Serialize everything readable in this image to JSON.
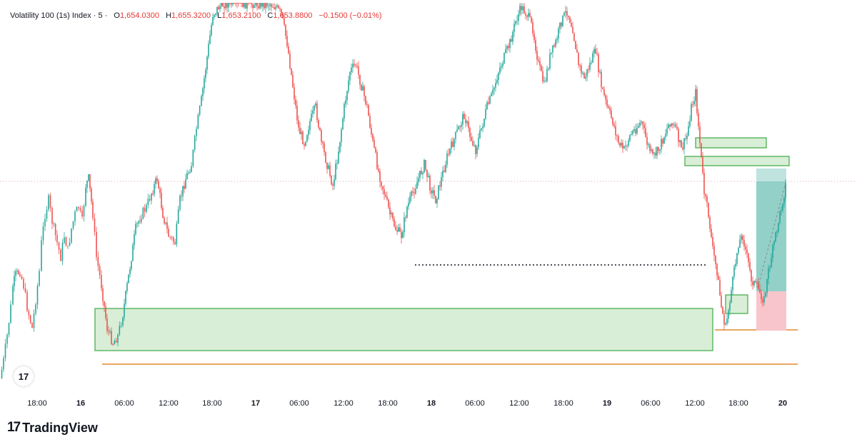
{
  "legend": {
    "symbol": "Volatility 100 (1s) Index · 5 ·",
    "open_key": "O",
    "open": "1,654.0300",
    "high_key": "H",
    "high": "1,655.3200",
    "low_key": "L",
    "low": "1,653.2100",
    "close_key": "C",
    "close": "1,653.8800",
    "change": "−0.1500 (−0.01%)"
  },
  "badge": {
    "label": "17",
    "icon": "tradingview-logo-icon"
  },
  "footer": {
    "logo_mark": "17",
    "brand": "TradingView"
  },
  "colors": {
    "up": "#26a69a",
    "down": "#ef5350",
    "zone_fill": "#d8eed6",
    "zone_stroke": "#4caf50",
    "level": "#e08a2e",
    "target": "#26a69a",
    "stop": "#f7c5cb"
  },
  "chart_data": {
    "type": "line",
    "note_type": "candlestick",
    "x_ticks": [
      {
        "label": "18:00",
        "bold": false
      },
      {
        "label": "16",
        "bold": true
      },
      {
        "label": "06:00",
        "bold": false
      },
      {
        "label": "12:00",
        "bold": false
      },
      {
        "label": "18:00",
        "bold": false
      },
      {
        "label": "17",
        "bold": true
      },
      {
        "label": "06:00",
        "bold": false
      },
      {
        "label": "12:00",
        "bold": false
      },
      {
        "label": "18:00",
        "bold": false
      },
      {
        "label": "18",
        "bold": true
      },
      {
        "label": "06:00",
        "bold": false
      },
      {
        "label": "12:00",
        "bold": false
      },
      {
        "label": "18:00",
        "bold": false
      },
      {
        "label": "19",
        "bold": true
      },
      {
        "label": "06:00",
        "bold": false
      },
      {
        "label": "12:00",
        "bold": false
      },
      {
        "label": "18:00",
        "bold": false
      },
      {
        "label": "20",
        "bold": true
      }
    ],
    "x": [
      0,
      5,
      10,
      15,
      18,
      22,
      28,
      33,
      38,
      45,
      50,
      55,
      58,
      63,
      68,
      73,
      80,
      85,
      90,
      95,
      100,
      105,
      110,
      115,
      120,
      124,
      130,
      135,
      142,
      150,
      158,
      165,
      172,
      178,
      184,
      190,
      198,
      205,
      212,
      220,
      228,
      236,
      245,
      252,
      260,
      268,
      275,
      282,
      290,
      298,
      306,
      314,
      322,
      330,
      338,
      346,
      354,
      362,
      370,
      378,
      386,
      394,
      402,
      410,
      418,
      426,
      434,
      442,
      450,
      458,
      466,
      474,
      482,
      490,
      498,
      506,
      514,
      522,
      530,
      538,
      546,
      554,
      562,
      570,
      578,
      586,
      594,
      602,
      610,
      618,
      626,
      634,
      642,
      650,
      658,
      666,
      674,
      682,
      690,
      698,
      706,
      714,
      722,
      730,
      738,
      746,
      754,
      762,
      770,
      778,
      786,
      794,
      802,
      810,
      818,
      826,
      834,
      842,
      850,
      858,
      866,
      874,
      882,
      890,
      898,
      906,
      914,
      922,
      930,
      938,
      946,
      954,
      962,
      968,
      974,
      980,
      986,
      992,
      998,
      1004,
      1010,
      1016,
      1022,
      1028,
      1034,
      1040,
      1046,
      1052,
      1058,
      1064,
      1070,
      1076,
      1082,
      1088,
      1094,
      1100
    ],
    "y": [
      530,
      505,
      470,
      430,
      400,
      385,
      380,
      400,
      430,
      460,
      420,
      380,
      340,
      300,
      280,
      310,
      340,
      360,
      330,
      350,
      320,
      300,
      290,
      310,
      260,
      250,
      300,
      360,
      400,
      460,
      480,
      470,
      440,
      400,
      360,
      320,
      300,
      290,
      270,
      250,
      300,
      330,
      340,
      280,
      250,
      230,
      180,
      140,
      80,
      20,
      10,
      5,
      5,
      5,
      5,
      5,
      5,
      5,
      5,
      5,
      10,
      20,
      60,
      120,
      180,
      200,
      170,
      150,
      200,
      230,
      260,
      210,
      150,
      100,
      90,
      120,
      150,
      200,
      240,
      270,
      300,
      320,
      330,
      290,
      270,
      250,
      230,
      260,
      280,
      250,
      220,
      200,
      180,
      160,
      190,
      210,
      180,
      150,
      130,
      100,
      80,
      60,
      30,
      10,
      20,
      40,
      90,
      120,
      80,
      60,
      30,
      15,
      40,
      90,
      110,
      90,
      70,
      120,
      150,
      170,
      200,
      210,
      190,
      180,
      170,
      200,
      220,
      210,
      190,
      170,
      180,
      210,
      190,
      150,
      130,
      200,
      270,
      300,
      350,
      380,
      430,
      460,
      420,
      380,
      340,
      330,
      360,
      390,
      400,
      410,
      420,
      380,
      350,
      320,
      290,
      260
    ],
    "price_line_y": 254,
    "zones": [
      {
        "name": "demand-zone-large",
        "x1": 133,
        "x2": 998,
        "y1": 432,
        "y2": 491
      },
      {
        "name": "demand-zone-small",
        "x1": 1016,
        "x2": 1047,
        "y1": 413,
        "y2": 439
      },
      {
        "name": "supply-zone-upper",
        "x1": 974,
        "x2": 1073,
        "y1": 193,
        "y2": 207
      },
      {
        "name": "supply-zone-lower",
        "x1": 959,
        "x2": 1105,
        "y1": 219,
        "y2": 232
      }
    ],
    "levels": [
      {
        "name": "support-line-low",
        "x1": 143,
        "x2": 1117,
        "y": 510
      },
      {
        "name": "support-line-recent",
        "x1": 1001,
        "x2": 1117,
        "y": 462
      }
    ],
    "dotted_level": {
      "x1": 581,
      "x2": 990,
      "y": 371
    },
    "position": {
      "x1": 1059,
      "x2": 1101,
      "target_y1": 236,
      "entry_y": 408,
      "stop_y2": 463
    }
  }
}
